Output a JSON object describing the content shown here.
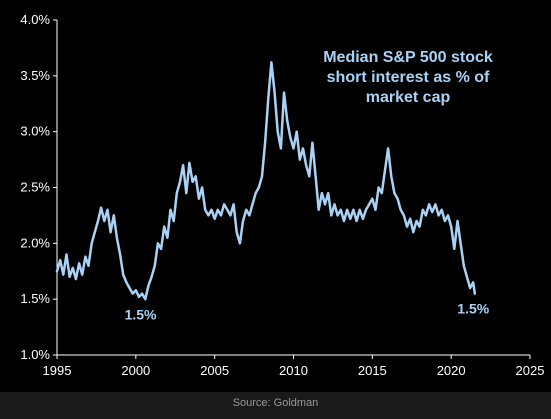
{
  "chart_data": {
    "type": "line",
    "title_lines": [
      "Median S&P 500 stock",
      "short interest as % of",
      "market cap"
    ],
    "xlim": [
      1995,
      2025
    ],
    "ylim": [
      1.0,
      4.0
    ],
    "x_ticks": [
      1995,
      2000,
      2005,
      2010,
      2015,
      2020,
      2025
    ],
    "y_ticks": [
      1.0,
      1.5,
      2.0,
      2.5,
      3.0,
      3.5,
      4.0
    ],
    "y_tick_labels": [
      "1.0%",
      "1.5%",
      "2.0%",
      "2.5%",
      "3.0%",
      "3.5%",
      "4.0%"
    ],
    "annotations": [
      {
        "text": "1.5%",
        "x": 2000.3,
        "y": 1.32
      },
      {
        "text": "1.5%",
        "x": 2021.4,
        "y": 1.37
      }
    ],
    "series": [
      {
        "color": "#a9d2f5",
        "points": [
          [
            1995.0,
            1.75
          ],
          [
            1995.2,
            1.85
          ],
          [
            1995.4,
            1.72
          ],
          [
            1995.6,
            1.9
          ],
          [
            1995.8,
            1.7
          ],
          [
            1996.0,
            1.78
          ],
          [
            1996.2,
            1.68
          ],
          [
            1996.4,
            1.82
          ],
          [
            1996.6,
            1.72
          ],
          [
            1996.8,
            1.88
          ],
          [
            1997.0,
            1.8
          ],
          [
            1997.2,
            2.0
          ],
          [
            1997.4,
            2.1
          ],
          [
            1997.6,
            2.2
          ],
          [
            1997.8,
            2.32
          ],
          [
            1998.0,
            2.2
          ],
          [
            1998.2,
            2.3
          ],
          [
            1998.4,
            2.1
          ],
          [
            1998.6,
            2.25
          ],
          [
            1998.8,
            2.05
          ],
          [
            1999.0,
            1.9
          ],
          [
            1999.2,
            1.72
          ],
          [
            1999.4,
            1.65
          ],
          [
            1999.6,
            1.6
          ],
          [
            1999.8,
            1.55
          ],
          [
            2000.0,
            1.58
          ],
          [
            2000.2,
            1.52
          ],
          [
            2000.4,
            1.55
          ],
          [
            2000.6,
            1.5
          ],
          [
            2000.8,
            1.62
          ],
          [
            2001.0,
            1.7
          ],
          [
            2001.2,
            1.8
          ],
          [
            2001.4,
            2.0
          ],
          [
            2001.6,
            1.95
          ],
          [
            2001.8,
            2.15
          ],
          [
            2002.0,
            2.05
          ],
          [
            2002.2,
            2.3
          ],
          [
            2002.4,
            2.2
          ],
          [
            2002.6,
            2.45
          ],
          [
            2002.8,
            2.55
          ],
          [
            2003.0,
            2.7
          ],
          [
            2003.2,
            2.45
          ],
          [
            2003.4,
            2.72
          ],
          [
            2003.6,
            2.55
          ],
          [
            2003.8,
            2.6
          ],
          [
            2004.0,
            2.4
          ],
          [
            2004.2,
            2.5
          ],
          [
            2004.4,
            2.3
          ],
          [
            2004.6,
            2.25
          ],
          [
            2004.8,
            2.3
          ],
          [
            2005.0,
            2.22
          ],
          [
            2005.2,
            2.3
          ],
          [
            2005.4,
            2.25
          ],
          [
            2005.6,
            2.35
          ],
          [
            2005.8,
            2.3
          ],
          [
            2006.0,
            2.25
          ],
          [
            2006.2,
            2.35
          ],
          [
            2006.4,
            2.1
          ],
          [
            2006.6,
            2.0
          ],
          [
            2006.8,
            2.2
          ],
          [
            2007.0,
            2.3
          ],
          [
            2007.2,
            2.25
          ],
          [
            2007.4,
            2.35
          ],
          [
            2007.6,
            2.45
          ],
          [
            2007.8,
            2.5
          ],
          [
            2008.0,
            2.6
          ],
          [
            2008.2,
            2.9
          ],
          [
            2008.4,
            3.3
          ],
          [
            2008.6,
            3.62
          ],
          [
            2008.8,
            3.35
          ],
          [
            2009.0,
            3.0
          ],
          [
            2009.2,
            2.85
          ],
          [
            2009.4,
            3.35
          ],
          [
            2009.6,
            3.1
          ],
          [
            2009.8,
            2.95
          ],
          [
            2010.0,
            2.85
          ],
          [
            2010.2,
            3.0
          ],
          [
            2010.4,
            2.75
          ],
          [
            2010.6,
            2.85
          ],
          [
            2010.8,
            2.7
          ],
          [
            2011.0,
            2.6
          ],
          [
            2011.2,
            2.9
          ],
          [
            2011.4,
            2.6
          ],
          [
            2011.6,
            2.3
          ],
          [
            2011.8,
            2.45
          ],
          [
            2012.0,
            2.35
          ],
          [
            2012.2,
            2.45
          ],
          [
            2012.4,
            2.25
          ],
          [
            2012.6,
            2.35
          ],
          [
            2012.8,
            2.25
          ],
          [
            2013.0,
            2.3
          ],
          [
            2013.2,
            2.2
          ],
          [
            2013.4,
            2.3
          ],
          [
            2013.6,
            2.22
          ],
          [
            2013.8,
            2.3
          ],
          [
            2014.0,
            2.2
          ],
          [
            2014.2,
            2.3
          ],
          [
            2014.4,
            2.22
          ],
          [
            2014.6,
            2.3
          ],
          [
            2014.8,
            2.35
          ],
          [
            2015.0,
            2.4
          ],
          [
            2015.2,
            2.3
          ],
          [
            2015.4,
            2.5
          ],
          [
            2015.6,
            2.45
          ],
          [
            2015.8,
            2.65
          ],
          [
            2016.0,
            2.85
          ],
          [
            2016.2,
            2.6
          ],
          [
            2016.4,
            2.45
          ],
          [
            2016.6,
            2.4
          ],
          [
            2016.8,
            2.3
          ],
          [
            2017.0,
            2.25
          ],
          [
            2017.2,
            2.15
          ],
          [
            2017.4,
            2.22
          ],
          [
            2017.6,
            2.1
          ],
          [
            2017.8,
            2.2
          ],
          [
            2018.0,
            2.15
          ],
          [
            2018.2,
            2.3
          ],
          [
            2018.4,
            2.25
          ],
          [
            2018.6,
            2.35
          ],
          [
            2018.8,
            2.28
          ],
          [
            2019.0,
            2.35
          ],
          [
            2019.2,
            2.25
          ],
          [
            2019.4,
            2.3
          ],
          [
            2019.6,
            2.2
          ],
          [
            2019.8,
            2.25
          ],
          [
            2020.0,
            2.15
          ],
          [
            2020.2,
            1.95
          ],
          [
            2020.4,
            2.2
          ],
          [
            2020.6,
            2.0
          ],
          [
            2020.8,
            1.8
          ],
          [
            2021.0,
            1.7
          ],
          [
            2021.2,
            1.6
          ],
          [
            2021.4,
            1.65
          ],
          [
            2021.5,
            1.55
          ]
        ]
      }
    ]
  },
  "source": "Source: Goldman"
}
